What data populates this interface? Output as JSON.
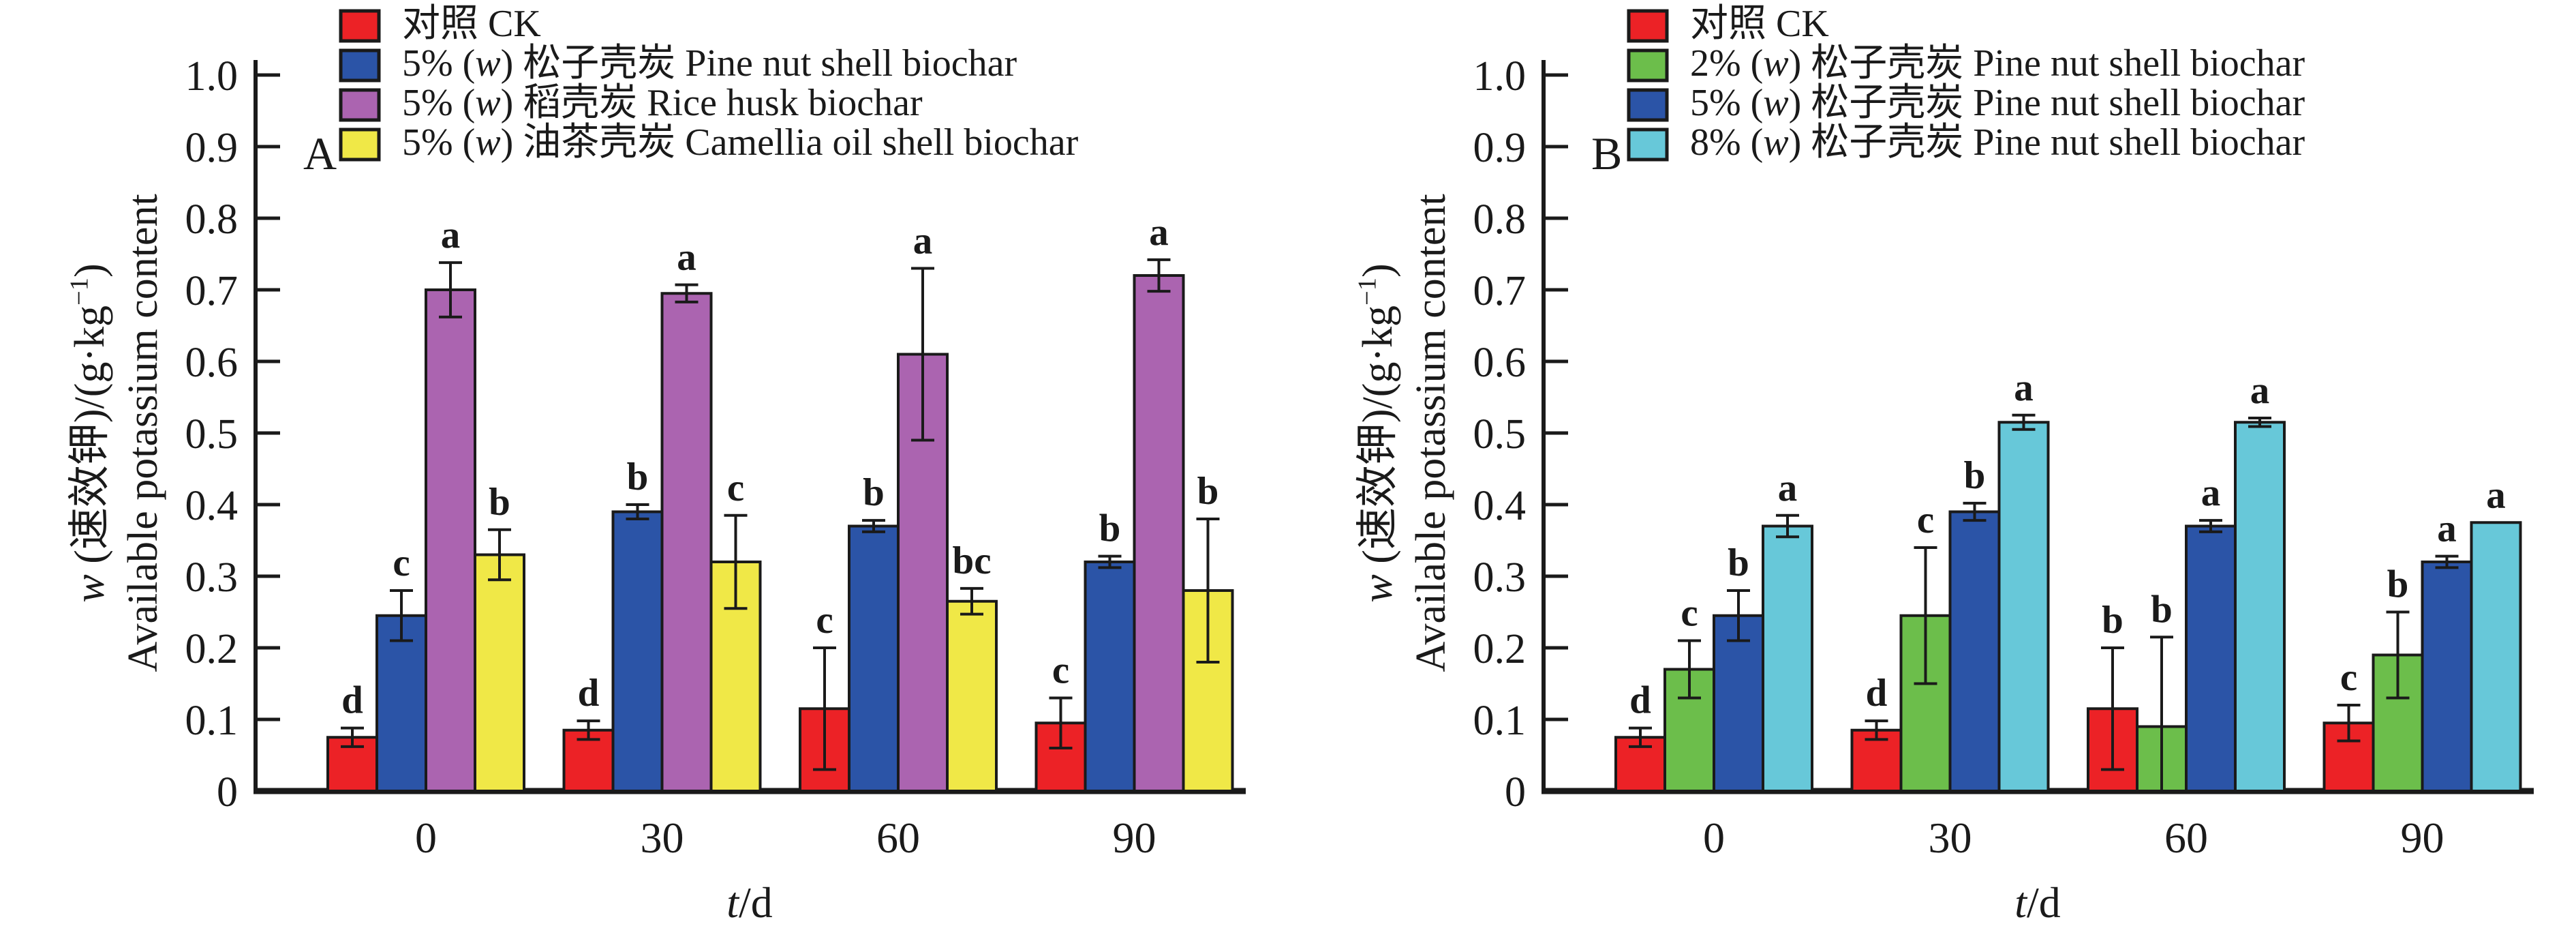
{
  "figure": {
    "background": "#ffffff",
    "axis_color": "#1a1a1a",
    "text_color": "#1a1a1a"
  },
  "chart_data": [
    {
      "type": "bar",
      "panel_label": "A",
      "categories": [
        "0",
        "30",
        "60",
        "90"
      ],
      "xlabel_segments": [
        {
          "t": "t",
          "i": true
        },
        {
          "t": "/d"
        }
      ],
      "ylabel_line1_segments": [
        {
          "t": "w",
          "i": true
        },
        {
          "t": " (速效钾)/(g·kg"
        },
        {
          "t": "−1",
          "sup": true
        },
        {
          "t": ")"
        }
      ],
      "ylabel_line2": "Available potassium content",
      "ylim": [
        0,
        1.0
      ],
      "yticks": [
        "0",
        "0.1",
        "0.2",
        "0.3",
        "0.4",
        "0.5",
        "0.6",
        "0.7",
        "0.8",
        "0.9",
        "1.0"
      ],
      "grid": false,
      "legend_position": "top-inside",
      "series": [
        {
          "label_segments": [
            {
              "t": "对照 CK"
            }
          ],
          "color": "#EC2226",
          "values": [
            0.075,
            0.085,
            0.115,
            0.095
          ],
          "errors": [
            0.013,
            0.013,
            0.085,
            0.035
          ],
          "letters": [
            "d",
            "d",
            "c",
            "c"
          ]
        },
        {
          "label_segments": [
            {
              "t": "5% ("
            },
            {
              "t": "w",
              "i": true
            },
            {
              "t": ") 松子壳炭 Pine nut shell biochar"
            }
          ],
          "color": "#2B54A7",
          "values": [
            0.245,
            0.39,
            0.37,
            0.32
          ],
          "errors": [
            0.035,
            0.01,
            0.008,
            0.008
          ],
          "letters": [
            "c",
            "b",
            "b",
            "b"
          ]
        },
        {
          "label_segments": [
            {
              "t": "5% ("
            },
            {
              "t": "w",
              "i": true
            },
            {
              "t": ") 稻壳炭 Rice husk biochar"
            }
          ],
          "color": "#AB64B0",
          "values": [
            0.7,
            0.695,
            0.61,
            0.72
          ],
          "errors": [
            0.038,
            0.012,
            0.12,
            0.022
          ],
          "letters": [
            "a",
            "a",
            "a",
            "a"
          ]
        },
        {
          "label_segments": [
            {
              "t": "5% ("
            },
            {
              "t": "w",
              "i": true
            },
            {
              "t": ") 油茶壳炭 Camellia oil shell biochar"
            }
          ],
          "color": "#F0E847",
          "values": [
            0.33,
            0.32,
            0.265,
            0.28
          ],
          "errors": [
            0.035,
            0.065,
            0.018,
            0.1
          ],
          "letters": [
            "b",
            "c",
            "bc",
            "b"
          ]
        }
      ]
    },
    {
      "type": "bar",
      "panel_label": "B",
      "categories": [
        "0",
        "30",
        "60",
        "90"
      ],
      "xlabel_segments": [
        {
          "t": "t",
          "i": true
        },
        {
          "t": "/d"
        }
      ],
      "ylabel_line1_segments": [
        {
          "t": "w",
          "i": true
        },
        {
          "t": " (速效钾)/(g·kg"
        },
        {
          "t": "−1",
          "sup": true
        },
        {
          "t": ")"
        }
      ],
      "ylabel_line2": "Available potassium content",
      "ylim": [
        0,
        1.0
      ],
      "yticks": [
        "0",
        "0.1",
        "0.2",
        "0.3",
        "0.4",
        "0.5",
        "0.6",
        "0.7",
        "0.8",
        "0.9",
        "1.0"
      ],
      "grid": false,
      "legend_position": "top-inside",
      "series": [
        {
          "label_segments": [
            {
              "t": "对照 CK"
            }
          ],
          "color": "#EC2226",
          "values": [
            0.075,
            0.085,
            0.115,
            0.095
          ],
          "errors": [
            0.013,
            0.013,
            0.085,
            0.025
          ],
          "letters": [
            "d",
            "d",
            "b",
            "c"
          ]
        },
        {
          "label_segments": [
            {
              "t": "2% ("
            },
            {
              "t": "w",
              "i": true
            },
            {
              "t": ") 松子壳炭 Pine nut shell biochar"
            }
          ],
          "color": "#6CBE4B",
          "values": [
            0.17,
            0.245,
            0.09,
            0.19
          ],
          "errors": [
            0.04,
            0.095,
            0.125,
            0.06
          ],
          "letters": [
            "c",
            "c",
            "b",
            "b"
          ]
        },
        {
          "label_segments": [
            {
              "t": "5% ("
            },
            {
              "t": "w",
              "i": true
            },
            {
              "t": ") 松子壳炭 Pine nut shell biochar"
            }
          ],
          "color": "#2B54A7",
          "values": [
            0.245,
            0.39,
            0.37,
            0.32
          ],
          "errors": [
            0.035,
            0.012,
            0.008,
            0.008
          ],
          "letters": [
            "b",
            "b",
            "a",
            "a"
          ]
        },
        {
          "label_segments": [
            {
              "t": "8% ("
            },
            {
              "t": "w",
              "i": true
            },
            {
              "t": ") 松子壳炭 Pine nut shell biochar"
            }
          ],
          "color": "#67C8D9",
          "values": [
            0.37,
            0.515,
            0.515,
            0.375
          ],
          "errors": [
            0.015,
            0.01,
            0.006,
            0
          ],
          "letters": [
            "a",
            "a",
            "a",
            "a"
          ]
        }
      ]
    }
  ]
}
